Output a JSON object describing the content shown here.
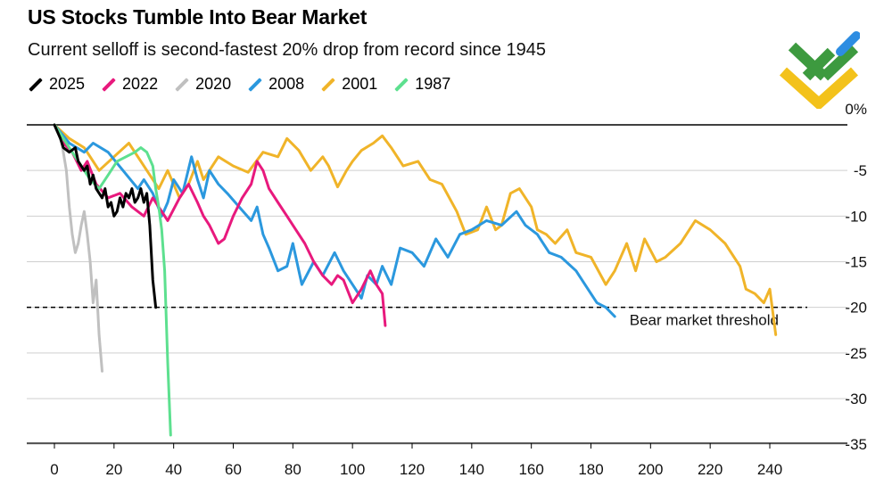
{
  "chart_data": {
    "type": "line",
    "title": "US Stocks Tumble Into Bear Market",
    "subtitle": "Current selloff is second-fastest 20% drop from record since 1945",
    "xlabel": "",
    "ylabel": "",
    "xlim": [
      0,
      250
    ],
    "ylim": [
      -35,
      0
    ],
    "x_ticks": [
      "0",
      "20",
      "40",
      "60",
      "80",
      "100",
      "120",
      "140",
      "160",
      "180",
      "200",
      "220",
      "240"
    ],
    "y_ticks": [
      "0%",
      "-5",
      "-10",
      "-15",
      "-20",
      "-25",
      "-30",
      "-35"
    ],
    "threshold": {
      "value": -20,
      "label": "Bear market threshold"
    },
    "series": [
      {
        "name": "2001",
        "color": "#f0b429",
        "points": [
          [
            0,
            0
          ],
          [
            5,
            -1.5
          ],
          [
            10,
            -2.5
          ],
          [
            15,
            -5
          ],
          [
            20,
            -3.5
          ],
          [
            25,
            -2
          ],
          [
            30,
            -4.5
          ],
          [
            35,
            -7
          ],
          [
            38,
            -5
          ],
          [
            42,
            -8
          ],
          [
            45,
            -6.5
          ],
          [
            48,
            -4
          ],
          [
            50,
            -6
          ],
          [
            55,
            -3.5
          ],
          [
            60,
            -4.5
          ],
          [
            65,
            -5.2
          ],
          [
            70,
            -3
          ],
          [
            75,
            -3.5
          ],
          [
            78,
            -1.5
          ],
          [
            82,
            -2.8
          ],
          [
            86,
            -5
          ],
          [
            90,
            -3.5
          ],
          [
            92,
            -4.5
          ],
          [
            95,
            -6.8
          ],
          [
            98,
            -5
          ],
          [
            100,
            -4
          ],
          [
            103,
            -2.8
          ],
          [
            107,
            -2
          ],
          [
            110,
            -1.2
          ],
          [
            113,
            -2.5
          ],
          [
            117,
            -4.5
          ],
          [
            122,
            -4
          ],
          [
            126,
            -6
          ],
          [
            130,
            -6.5
          ],
          [
            135,
            -9.5
          ],
          [
            138,
            -12
          ],
          [
            142,
            -11.5
          ],
          [
            145,
            -9
          ],
          [
            148,
            -11.5
          ],
          [
            150,
            -11
          ],
          [
            153,
            -7.5
          ],
          [
            156,
            -7
          ],
          [
            160,
            -9
          ],
          [
            162,
            -11.5
          ],
          [
            165,
            -12
          ],
          [
            168,
            -13
          ],
          [
            172,
            -11.5
          ],
          [
            175,
            -14
          ],
          [
            180,
            -14.5
          ],
          [
            185,
            -17.5
          ],
          [
            188,
            -16
          ],
          [
            192,
            -13
          ],
          [
            195,
            -16
          ],
          [
            198,
            -12.5
          ],
          [
            202,
            -15
          ],
          [
            205,
            -14.5
          ],
          [
            210,
            -13
          ],
          [
            215,
            -10.5
          ],
          [
            220,
            -11.5
          ],
          [
            225,
            -13
          ],
          [
            230,
            -15.5
          ],
          [
            232,
            -18
          ],
          [
            235,
            -18.5
          ],
          [
            238,
            -19.5
          ],
          [
            240,
            -18
          ],
          [
            242,
            -23
          ]
        ]
      },
      {
        "name": "2008",
        "color": "#2b98de",
        "points": [
          [
            0,
            0
          ],
          [
            5,
            -2
          ],
          [
            10,
            -3
          ],
          [
            13,
            -2
          ],
          [
            18,
            -3
          ],
          [
            23,
            -5
          ],
          [
            28,
            -7
          ],
          [
            30,
            -6
          ],
          [
            33,
            -7.5
          ],
          [
            36,
            -10
          ],
          [
            38,
            -8.5
          ],
          [
            40,
            -6
          ],
          [
            43,
            -7.5
          ],
          [
            46,
            -3.5
          ],
          [
            48,
            -6
          ],
          [
            50,
            -8
          ],
          [
            52,
            -5
          ],
          [
            55,
            -6.5
          ],
          [
            58,
            -7.5
          ],
          [
            62,
            -9
          ],
          [
            66,
            -10.5
          ],
          [
            68,
            -9
          ],
          [
            70,
            -12
          ],
          [
            72,
            -13.5
          ],
          [
            75,
            -16
          ],
          [
            78,
            -15.5
          ],
          [
            80,
            -13
          ],
          [
            83,
            -17.5
          ],
          [
            87,
            -15
          ],
          [
            90,
            -16.5
          ],
          [
            94,
            -14
          ],
          [
            97,
            -16
          ],
          [
            100,
            -17.5
          ],
          [
            103,
            -19
          ],
          [
            105,
            -16.5
          ],
          [
            108,
            -17.5
          ],
          [
            110,
            -15.5
          ],
          [
            113,
            -17.5
          ],
          [
            116,
            -13.5
          ],
          [
            120,
            -14
          ],
          [
            124,
            -15.5
          ],
          [
            128,
            -12.5
          ],
          [
            132,
            -14.5
          ],
          [
            136,
            -12
          ],
          [
            140,
            -11.5
          ],
          [
            145,
            -10.5
          ],
          [
            150,
            -11
          ],
          [
            155,
            -9.5
          ],
          [
            158,
            -11
          ],
          [
            162,
            -12
          ],
          [
            166,
            -14
          ],
          [
            170,
            -14.5
          ],
          [
            175,
            -16
          ],
          [
            178,
            -17.5
          ],
          [
            182,
            -19.5
          ],
          [
            185,
            -20
          ],
          [
            188,
            -21
          ]
        ]
      },
      {
        "name": "2022",
        "color": "#e8197d",
        "points": [
          [
            0,
            0
          ],
          [
            3,
            -2
          ],
          [
            6,
            -3
          ],
          [
            9,
            -5
          ],
          [
            11,
            -4
          ],
          [
            14,
            -6.5
          ],
          [
            18,
            -8
          ],
          [
            22,
            -7.5
          ],
          [
            26,
            -9
          ],
          [
            30,
            -10
          ],
          [
            33,
            -8
          ],
          [
            36,
            -9.5
          ],
          [
            38,
            -10.5
          ],
          [
            42,
            -8
          ],
          [
            45,
            -6.5
          ],
          [
            48,
            -8.5
          ],
          [
            50,
            -10
          ],
          [
            52,
            -11
          ],
          [
            55,
            -13
          ],
          [
            57,
            -12.5
          ],
          [
            60,
            -10
          ],
          [
            63,
            -8
          ],
          [
            66,
            -6.5
          ],
          [
            68,
            -4
          ],
          [
            70,
            -5
          ],
          [
            72,
            -7
          ],
          [
            75,
            -8.5
          ],
          [
            78,
            -10
          ],
          [
            81,
            -11.5
          ],
          [
            84,
            -13
          ],
          [
            87,
            -15
          ],
          [
            90,
            -16.5
          ],
          [
            93,
            -17.5
          ],
          [
            95,
            -16.5
          ],
          [
            97,
            -17
          ],
          [
            100,
            -19.5
          ],
          [
            103,
            -18
          ],
          [
            106,
            -16
          ],
          [
            108,
            -17.5
          ],
          [
            110,
            -18.5
          ],
          [
            111,
            -22
          ]
        ]
      },
      {
        "name": "2020",
        "color": "#c0c0c0",
        "points": [
          [
            0,
            0
          ],
          [
            2,
            -1
          ],
          [
            3,
            -3
          ],
          [
            4,
            -5
          ],
          [
            5,
            -9
          ],
          [
            6,
            -12
          ],
          [
            7,
            -14
          ],
          [
            8,
            -13
          ],
          [
            9,
            -11
          ],
          [
            10,
            -9.5
          ],
          [
            11,
            -12
          ],
          [
            12,
            -15
          ],
          [
            13,
            -19.5
          ],
          [
            14,
            -17
          ],
          [
            15,
            -23
          ],
          [
            16,
            -27
          ]
        ]
      },
      {
        "name": "1987",
        "color": "#5de08f",
        "points": [
          [
            0,
            0
          ],
          [
            3,
            -1.5
          ],
          [
            6,
            -3
          ],
          [
            9,
            -4.5
          ],
          [
            12,
            -6
          ],
          [
            15,
            -7
          ],
          [
            18,
            -5.5
          ],
          [
            21,
            -4
          ],
          [
            24,
            -3.5
          ],
          [
            27,
            -3
          ],
          [
            29,
            -2.5
          ],
          [
            31,
            -3
          ],
          [
            33,
            -4.5
          ],
          [
            34,
            -7
          ],
          [
            35,
            -9
          ],
          [
            36,
            -11.5
          ],
          [
            37,
            -16
          ],
          [
            38,
            -26
          ],
          [
            39,
            -34
          ]
        ]
      },
      {
        "name": "2025",
        "color": "#000000",
        "points": [
          [
            0,
            0
          ],
          [
            2,
            -1.5
          ],
          [
            3,
            -2.5
          ],
          [
            5,
            -3
          ],
          [
            7,
            -2.5
          ],
          [
            8,
            -4
          ],
          [
            10,
            -5
          ],
          [
            11,
            -4.5
          ],
          [
            12,
            -6.5
          ],
          [
            13,
            -5.5
          ],
          [
            14,
            -7
          ],
          [
            16,
            -8
          ],
          [
            17,
            -7
          ],
          [
            18,
            -9
          ],
          [
            19,
            -8.5
          ],
          [
            20,
            -10
          ],
          [
            21,
            -9.5
          ],
          [
            22,
            -8
          ],
          [
            23,
            -9
          ],
          [
            24,
            -7.5
          ],
          [
            25,
            -8
          ],
          [
            26,
            -7
          ],
          [
            27,
            -8.5
          ],
          [
            28,
            -8
          ],
          [
            29,
            -7
          ],
          [
            30,
            -8.5
          ],
          [
            31,
            -7.5
          ],
          [
            32,
            -11
          ],
          [
            33,
            -17
          ],
          [
            34,
            -20
          ]
        ]
      }
    ],
    "legend_order": [
      "2025",
      "2022",
      "2020",
      "2008",
      "2001",
      "1987"
    ],
    "legend_placement": "top-left"
  }
}
